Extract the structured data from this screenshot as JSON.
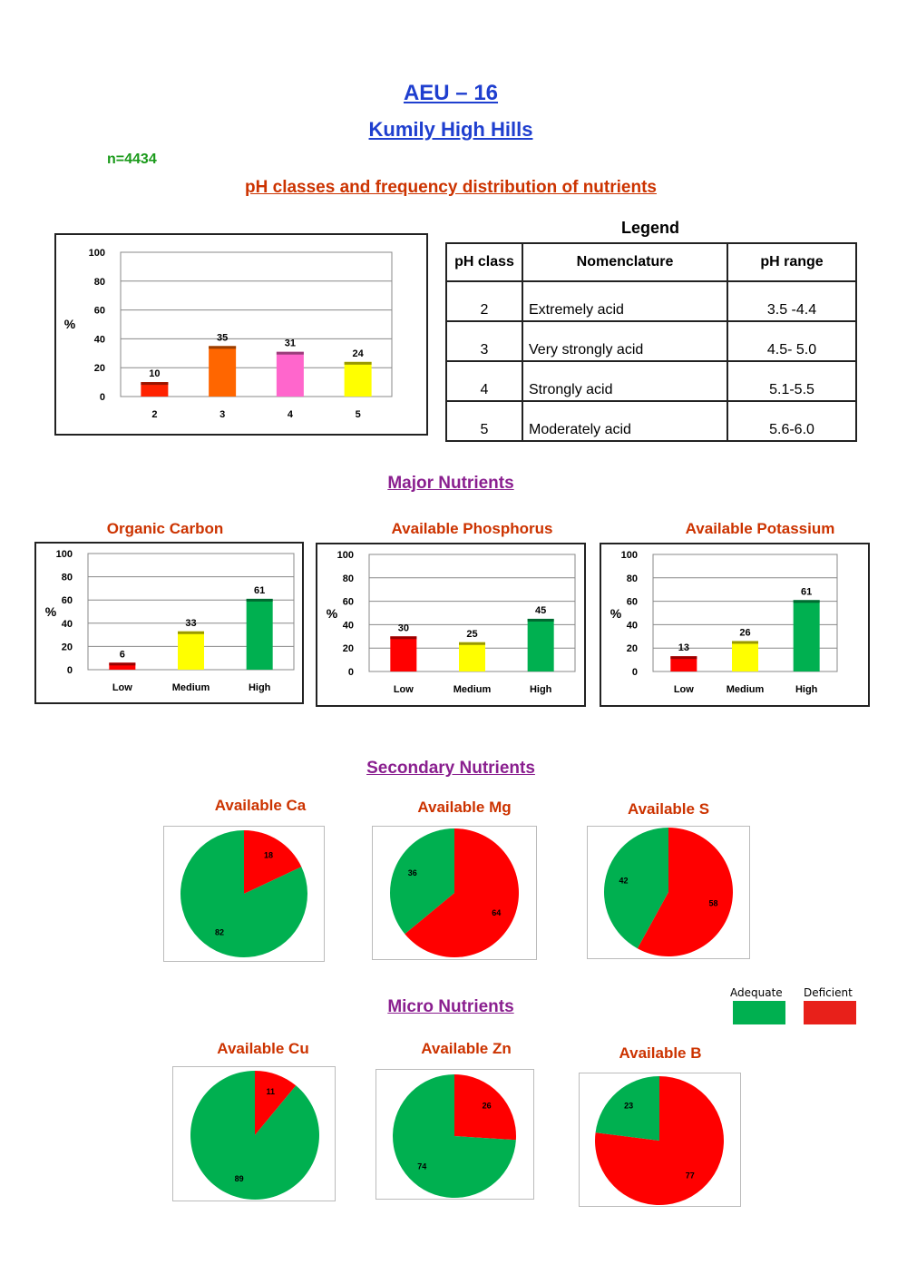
{
  "header": {
    "title": "AEU – 16",
    "subtitle": "Kumily High Hills",
    "n": "n=4434"
  },
  "ph_section": {
    "heading": "pH classes and frequency distribution of nutrients",
    "legend_title": "Legend",
    "table": {
      "headers": [
        "pH class",
        "Nomenclature",
        "pH range"
      ],
      "rows": [
        [
          "2",
          "Extremely acid",
          "3.5 -4.4"
        ],
        [
          "3",
          "Very strongly acid",
          "4.5- 5.0"
        ],
        [
          "4",
          "Strongly acid",
          "5.1-5.5"
        ],
        [
          "5",
          "Moderately acid",
          "5.6-6.0"
        ]
      ]
    }
  },
  "major": {
    "heading": "Major Nutrients"
  },
  "secondary": {
    "heading": "Secondary Nutrients"
  },
  "micro": {
    "heading": "Micro Nutrients"
  },
  "pie_key": {
    "adequate": "Adequate",
    "deficient": "Deficient",
    "adequate_color": "#00b050",
    "deficient_color": "#ff0000"
  },
  "chart_data": [
    {
      "id": "ph",
      "type": "bar",
      "title": "",
      "ylabel": "%",
      "ylim": [
        0,
        100
      ],
      "yticks": [
        0,
        20,
        40,
        60,
        80,
        100
      ],
      "categories": [
        "2",
        "3",
        "4",
        "5"
      ],
      "values": [
        10,
        35,
        31,
        24
      ],
      "colors": [
        "#ff2200",
        "#ff6600",
        "#ff66cc",
        "#ffff00"
      ],
      "grid": true
    },
    {
      "id": "oc",
      "type": "bar",
      "title": "Organic Carbon",
      "ylabel": "%",
      "ylim": [
        0,
        100
      ],
      "yticks": [
        0,
        20,
        40,
        60,
        80,
        100
      ],
      "categories": [
        "Low",
        "Medium",
        "High"
      ],
      "values": [
        6,
        33,
        61
      ],
      "colors": [
        "#ff0000",
        "#ffff00",
        "#00b050"
      ],
      "grid": true
    },
    {
      "id": "ap",
      "type": "bar",
      "title": "Available Phosphorus",
      "ylabel": "%",
      "ylim": [
        0,
        100
      ],
      "yticks": [
        0,
        20,
        40,
        60,
        80,
        100
      ],
      "categories": [
        "Low",
        "Medium",
        "High"
      ],
      "values": [
        30,
        25,
        45
      ],
      "colors": [
        "#ff0000",
        "#ffff00",
        "#00b050"
      ],
      "grid": true
    },
    {
      "id": "ak",
      "type": "bar",
      "title": "Available Potassium",
      "ylabel": "%",
      "ylim": [
        0,
        100
      ],
      "yticks": [
        0,
        20,
        40,
        60,
        80,
        100
      ],
      "categories": [
        "Low",
        "Medium",
        "High"
      ],
      "values": [
        13,
        26,
        61
      ],
      "colors": [
        "#ff0000",
        "#ffff00",
        "#00b050"
      ],
      "grid": true
    },
    {
      "id": "ca",
      "type": "pie",
      "title": "Available Ca",
      "labels": [
        "Deficient",
        "Adequate"
      ],
      "values": [
        18,
        82
      ],
      "colors": [
        "#ff0000",
        "#00b050"
      ]
    },
    {
      "id": "mg",
      "type": "pie",
      "title": "Available Mg",
      "labels": [
        "Deficient",
        "Adequate"
      ],
      "values": [
        64,
        36
      ],
      "colors": [
        "#ff0000",
        "#00b050"
      ]
    },
    {
      "id": "s",
      "type": "pie",
      "title": "Available S",
      "labels": [
        "Deficient",
        "Adequate"
      ],
      "values": [
        58,
        42
      ],
      "colors": [
        "#ff0000",
        "#00b050"
      ]
    },
    {
      "id": "cu",
      "type": "pie",
      "title": "Available Cu",
      "labels": [
        "Deficient",
        "Adequate"
      ],
      "values": [
        11,
        89
      ],
      "colors": [
        "#ff0000",
        "#00b050"
      ]
    },
    {
      "id": "zn",
      "type": "pie",
      "title": "Available Zn",
      "labels": [
        "Deficient",
        "Adequate"
      ],
      "values": [
        26,
        74
      ],
      "colors": [
        "#ff0000",
        "#00b050"
      ]
    },
    {
      "id": "b",
      "type": "pie",
      "title": "Available B",
      "labels": [
        "Deficient",
        "Adequate"
      ],
      "values": [
        77,
        23
      ],
      "colors": [
        "#ff0000",
        "#00b050"
      ]
    }
  ]
}
